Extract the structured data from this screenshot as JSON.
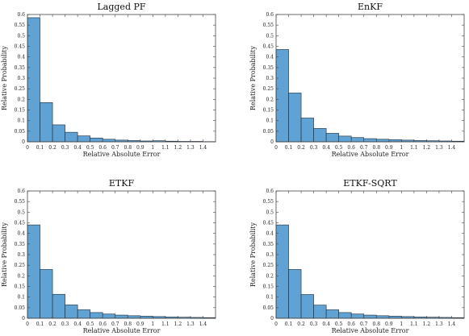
{
  "colors": {
    "bar": "#5fa2d3",
    "bar_edge": "#1b2a38"
  },
  "chart_data": [
    {
      "type": "bar",
      "title": "Lagged PF",
      "xlabel": "Relative Absolute Error",
      "ylabel": "Relative Probability",
      "bin_width": 0.1,
      "xlim": [
        0,
        1.5
      ],
      "ylim": [
        0,
        0.6
      ],
      "xticks": [
        "0",
        "0.1",
        "0.2",
        "0.3",
        "0.4",
        "0.5",
        "0.6",
        "0.7",
        "0.8",
        "0.9",
        "1",
        "1.1",
        "1.2",
        "1.3",
        "1.4"
      ],
      "yticks": [
        "0",
        "0.05",
        "0.1",
        "0.15",
        "0.2",
        "0.25",
        "0.3",
        "0.35",
        "0.4",
        "0.45",
        "0.5",
        "0.55",
        "0.6"
      ],
      "bin_starts": [
        0,
        0.1,
        0.2,
        0.3,
        0.4,
        0.5,
        0.6,
        0.7,
        0.8,
        0.9,
        1.0,
        1.1,
        1.2,
        1.3,
        1.4
      ],
      "values": [
        0.585,
        0.185,
        0.08,
        0.045,
        0.028,
        0.018,
        0.012,
        0.008,
        0.006,
        0.004,
        0.005,
        0.003,
        0.002,
        0.002,
        0.001
      ]
    },
    {
      "type": "bar",
      "title": "EnKF",
      "xlabel": "Relative Absolute Error",
      "ylabel": "Relative Probability",
      "bin_width": 0.1,
      "xlim": [
        0,
        1.5
      ],
      "ylim": [
        0,
        0.6
      ],
      "xticks": [
        "0",
        "0.1",
        "0.2",
        "0.3",
        "0.4",
        "0.5",
        "0.6",
        "0.7",
        "0.8",
        "0.9",
        "1",
        "1.1",
        "1.2",
        "1.3",
        "1.4"
      ],
      "yticks": [
        "0",
        "0.05",
        "0.1",
        "0.15",
        "0.2",
        "0.25",
        "0.3",
        "0.35",
        "0.4",
        "0.45",
        "0.5",
        "0.55",
        "0.6"
      ],
      "bin_starts": [
        0,
        0.1,
        0.2,
        0.3,
        0.4,
        0.5,
        0.6,
        0.7,
        0.8,
        0.9,
        1.0,
        1.1,
        1.2,
        1.3,
        1.4
      ],
      "values": [
        0.435,
        0.23,
        0.112,
        0.063,
        0.04,
        0.027,
        0.02,
        0.015,
        0.012,
        0.01,
        0.008,
        0.006,
        0.005,
        0.004,
        0.003
      ]
    },
    {
      "type": "bar",
      "title": "ETKF",
      "xlabel": "Relative Absolute Error",
      "ylabel": "Relative Probability",
      "bin_width": 0.1,
      "xlim": [
        0,
        1.5
      ],
      "ylim": [
        0,
        0.6
      ],
      "xticks": [
        "0",
        "0.1",
        "0.2",
        "0.3",
        "0.4",
        "0.5",
        "0.6",
        "0.7",
        "0.8",
        "0.9",
        "1",
        "1.1",
        "1.2",
        "1.3",
        "1.4"
      ],
      "yticks": [
        "0",
        "0.05",
        "0.1",
        "0.15",
        "0.2",
        "0.25",
        "0.3",
        "0.35",
        "0.4",
        "0.45",
        "0.5",
        "0.55",
        "0.6"
      ],
      "bin_starts": [
        0,
        0.1,
        0.2,
        0.3,
        0.4,
        0.5,
        0.6,
        0.7,
        0.8,
        0.9,
        1.0,
        1.1,
        1.2,
        1.3,
        1.4
      ],
      "values": [
        0.44,
        0.23,
        0.113,
        0.063,
        0.04,
        0.027,
        0.02,
        0.015,
        0.012,
        0.01,
        0.008,
        0.006,
        0.005,
        0.004,
        0.003
      ]
    },
    {
      "type": "bar",
      "title": "ETKF-SQRT",
      "xlabel": "Relative Absolute Error",
      "ylabel": "Relative Probability",
      "bin_width": 0.1,
      "xlim": [
        0,
        1.5
      ],
      "ylim": [
        0,
        0.6
      ],
      "xticks": [
        "0",
        "0.1",
        "0.2",
        "0.3",
        "0.4",
        "0.5",
        "0.6",
        "0.7",
        "0.8",
        "0.9",
        "1",
        "1.1",
        "1.2",
        "1.3",
        "1.4"
      ],
      "yticks": [
        "0",
        "0.05",
        "0.1",
        "0.15",
        "0.2",
        "0.25",
        "0.3",
        "0.35",
        "0.4",
        "0.45",
        "0.5",
        "0.55",
        "0.6"
      ],
      "bin_starts": [
        0,
        0.1,
        0.2,
        0.3,
        0.4,
        0.5,
        0.6,
        0.7,
        0.8,
        0.9,
        1.0,
        1.1,
        1.2,
        1.3,
        1.4
      ],
      "values": [
        0.44,
        0.23,
        0.112,
        0.062,
        0.04,
        0.027,
        0.02,
        0.015,
        0.012,
        0.01,
        0.008,
        0.006,
        0.005,
        0.004,
        0.003
      ]
    }
  ]
}
